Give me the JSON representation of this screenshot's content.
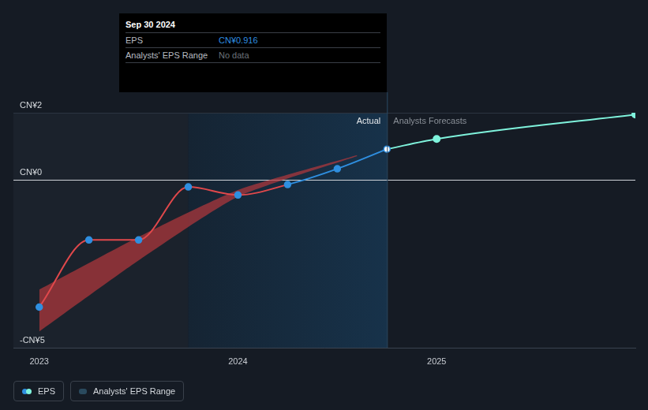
{
  "chart_data": {
    "type": "line",
    "xlim": [
      2022.87,
      2026
    ],
    "xticks": [
      2023,
      2024,
      2025
    ],
    "ylim": [
      -5,
      2
    ],
    "yticks": [
      {
        "value": -5,
        "label": "-CN¥5"
      },
      {
        "value": 0,
        "label": "CN¥0"
      },
      {
        "value": 2,
        "label": "CN¥2"
      }
    ],
    "grid": true,
    "series": [
      {
        "name": "EPS",
        "color": "#2f8fe0",
        "negative_color": "#e0484b",
        "marker": "circle",
        "x": [
          2023,
          2023.25,
          2023.5,
          2023.75,
          2024,
          2024.25,
          2024.5,
          2024.75
        ],
        "values": [
          -3.79,
          -1.79,
          -1.79,
          -0.21,
          -0.45,
          -0.14,
          0.33,
          0.916
        ]
      },
      {
        "name": "Analysts Forecasts",
        "color": "#7ff3dc",
        "marker": "circle",
        "x": [
          2025,
          2026
        ],
        "values": [
          1.22,
          1.95
        ]
      }
    ],
    "analysts_eps_range": {
      "name": "Analysts' EPS Range",
      "color": "#b8383d",
      "x": [
        2023,
        2023.5,
        2024,
        2024.6
      ],
      "low": [
        -4.52,
        -2.4,
        -0.5,
        0.71
      ],
      "high": [
        -3.27,
        -1.7,
        -0.3,
        0.74
      ]
    },
    "past_year": [
      2023.75,
      2024.75
    ],
    "actual_label": "Actual",
    "tooltip": {
      "title": "Sep 30 2024",
      "rows": [
        {
          "label": "EPS",
          "text": "CN¥0.916"
        },
        {
          "label": "Analysts' EPS Range",
          "text": "No data"
        }
      ]
    }
  }
}
